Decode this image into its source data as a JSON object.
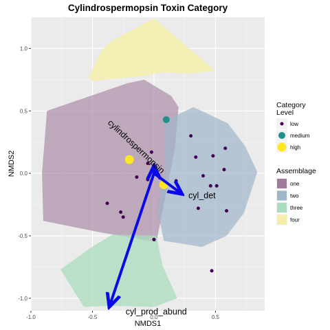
{
  "chart_data": {
    "type": "scatter",
    "title": "Cylindrospermopsin Toxin Category",
    "xlabel": "NMDS1",
    "ylabel": "NMDS2",
    "xlim": [
      -1.0,
      0.9
    ],
    "ylim": [
      -1.1,
      1.25
    ],
    "x_ticks": [
      -1.0,
      -0.5,
      0.0,
      0.5
    ],
    "x_tick_labels": [
      "-1.0",
      "-0.5",
      "0.0",
      "0.5"
    ],
    "y_ticks": [
      -1.0,
      -0.5,
      0.0,
      0.5,
      1.0
    ],
    "y_tick_labels": [
      "-1.0",
      "-0.5",
      "0.0",
      "0.5",
      "1.0"
    ],
    "grid": true,
    "background_color": "#ebebeb",
    "hulls": [
      {
        "name": "one",
        "color": "#a07b9d",
        "opacity": 0.6,
        "points": [
          [
            -0.87,
            0.5
          ],
          [
            -0.22,
            0.72
          ],
          [
            -0.08,
            0.75
          ],
          [
            0.14,
            0.62
          ],
          [
            0.2,
            0.53
          ],
          [
            0.17,
            0.2
          ],
          [
            0.02,
            -0.55
          ],
          [
            -0.45,
            -0.47
          ],
          [
            -0.9,
            -0.38
          ],
          [
            -0.91,
            0.0
          ]
        ]
      },
      {
        "name": "two",
        "color": "#9fb5ca",
        "opacity": 0.7,
        "points": [
          [
            0.09,
            0.42
          ],
          [
            0.32,
            0.53
          ],
          [
            0.6,
            0.4
          ],
          [
            0.74,
            0.22
          ],
          [
            0.84,
            0.01
          ],
          [
            0.73,
            -0.32
          ],
          [
            0.59,
            -0.5
          ],
          [
            0.39,
            -0.59
          ],
          [
            0.08,
            -0.54
          ],
          [
            0.03,
            -0.3
          ],
          [
            0.09,
            0.05
          ]
        ]
      },
      {
        "name": "three",
        "color": "#abdcbe",
        "opacity": 0.75,
        "points": [
          [
            -0.52,
            -0.6
          ],
          [
            -0.34,
            -0.49
          ],
          [
            0.02,
            -0.5
          ],
          [
            0.07,
            -0.74
          ],
          [
            0.19,
            -1.0
          ],
          [
            0.0,
            -1.07
          ],
          [
            -0.35,
            -1.06
          ],
          [
            -0.57,
            -1.07
          ],
          [
            -0.76,
            -0.77
          ]
        ]
      },
      {
        "name": "four",
        "color": "#f5eeaa",
        "opacity": 0.85,
        "points": [
          [
            -0.53,
            0.77
          ],
          [
            -0.43,
            0.98
          ],
          [
            -0.36,
            1.05
          ],
          [
            0.0,
            1.24
          ],
          [
            0.5,
            0.82
          ],
          [
            0.28,
            0.8
          ],
          [
            0.08,
            0.81
          ],
          [
            -0.08,
            0.78
          ],
          [
            -0.5,
            0.74
          ]
        ]
      }
    ],
    "points": [
      {
        "x": -0.2,
        "y": 0.11,
        "level": "high"
      },
      {
        "x": 0.08,
        "y": -0.09,
        "level": "high"
      },
      {
        "x": 0.1,
        "y": 0.43,
        "level": "medium"
      },
      {
        "x": -0.02,
        "y": 0.17,
        "level": "low"
      },
      {
        "x": -0.05,
        "y": 0.08,
        "level": "low"
      },
      {
        "x": -0.14,
        "y": -0.03,
        "level": "low"
      },
      {
        "x": -0.05,
        "y": -0.05,
        "level": "low"
      },
      {
        "x": -0.38,
        "y": -0.24,
        "level": "low"
      },
      {
        "x": -0.27,
        "y": -0.31,
        "level": "low"
      },
      {
        "x": -0.25,
        "y": -0.35,
        "level": "low"
      },
      {
        "x": 0.0,
        "y": -0.53,
        "level": "low"
      },
      {
        "x": 0.18,
        "y": -0.06,
        "level": "low"
      },
      {
        "x": 0.3,
        "y": 0.3,
        "level": "low"
      },
      {
        "x": 0.34,
        "y": 0.13,
        "level": "low"
      },
      {
        "x": 0.48,
        "y": 0.14,
        "level": "low"
      },
      {
        "x": 0.58,
        "y": 0.2,
        "level": "low"
      },
      {
        "x": 0.4,
        "y": -0.02,
        "level": "low"
      },
      {
        "x": 0.46,
        "y": -0.1,
        "level": "low"
      },
      {
        "x": 0.51,
        "y": -0.1,
        "level": "low"
      },
      {
        "x": 0.57,
        "y": 0.03,
        "level": "low"
      },
      {
        "x": 0.36,
        "y": -0.28,
        "level": "low"
      },
      {
        "x": 0.59,
        "y": -0.3,
        "level": "low"
      },
      {
        "x": 0.47,
        "y": -0.78,
        "level": "low"
      }
    ],
    "arrows": [
      {
        "label": "cylindrospermopsin",
        "x1": 0.0,
        "y1": 0.0,
        "x2": 0.0,
        "y2": 0.05,
        "text_x": -0.38,
        "text_y": 0.4,
        "rotate": 43
      },
      {
        "label": "cyl_det",
        "x1": 0.0,
        "y1": 0.0,
        "x2": 0.22,
        "y2": -0.16,
        "text_x": 0.28,
        "text_y": -0.2,
        "rotate": 0
      },
      {
        "label": "cyl_prod_abund",
        "x1": 0.0,
        "y1": 0.0,
        "x2": -0.36,
        "y2": -1.06,
        "text_x": -0.23,
        "text_y": -1.13,
        "rotate": 0
      }
    ],
    "legend_level": {
      "title_lines": [
        "Category",
        "Level"
      ],
      "items": [
        {
          "label": "low",
          "color": "#440154",
          "size": "small"
        },
        {
          "label": "medium",
          "color": "#21908c",
          "size": "medium"
        },
        {
          "label": "high",
          "color": "#fde725",
          "size": "large"
        }
      ]
    },
    "legend_assemblage": {
      "title": "Assemblage",
      "items": [
        {
          "label": "one",
          "color": "#a07b9d"
        },
        {
          "label": "two",
          "color": "#9fb5ca"
        },
        {
          "label": "three",
          "color": "#abdcbe"
        },
        {
          "label": "four",
          "color": "#f5eeaa"
        }
      ]
    },
    "level_colors": {
      "low": "#440154",
      "medium": "#21908c",
      "high": "#fde725"
    },
    "arrow_color": "#0a0ae6",
    "legend_placement": "right"
  }
}
